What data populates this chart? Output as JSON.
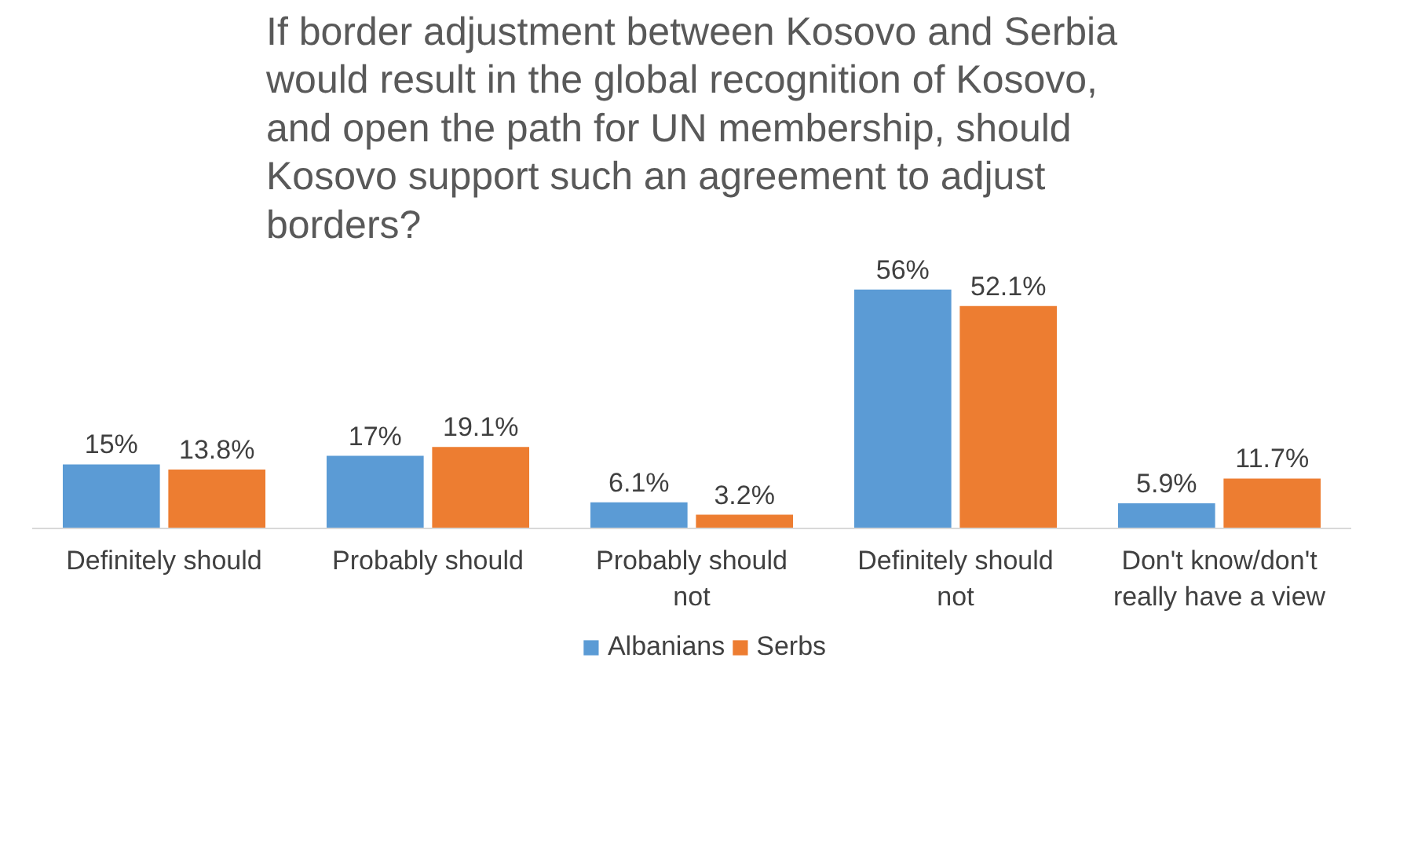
{
  "chart_data": {
    "type": "bar",
    "title": "If border adjustment between Kosovo and Serbia would result in the global recognition of Kosovo, and open the path for UN membership, should Kosovo support such an agreement to adjust borders?",
    "categories": [
      "Definitely should",
      "Probably should",
      "Probably should not",
      "Definitely should not",
      "Don't know/don't really have a view"
    ],
    "series": [
      {
        "name": "Albanians",
        "color": "#5b9bd5",
        "values": [
          15,
          17,
          6.1,
          56,
          5.9
        ],
        "value_labels": [
          "15%",
          "17%",
          "6.1%",
          "56%",
          "5.9%"
        ]
      },
      {
        "name": "Serbs",
        "color": "#ed7d31",
        "values": [
          13.8,
          19.1,
          3.2,
          52.1,
          11.7
        ],
        "value_labels": [
          "13.8%",
          "19.1%",
          "3.2%",
          "52.1%",
          "11.7%"
        ]
      }
    ],
    "tick_labels": "x",
    "legend": "bottom"
  }
}
